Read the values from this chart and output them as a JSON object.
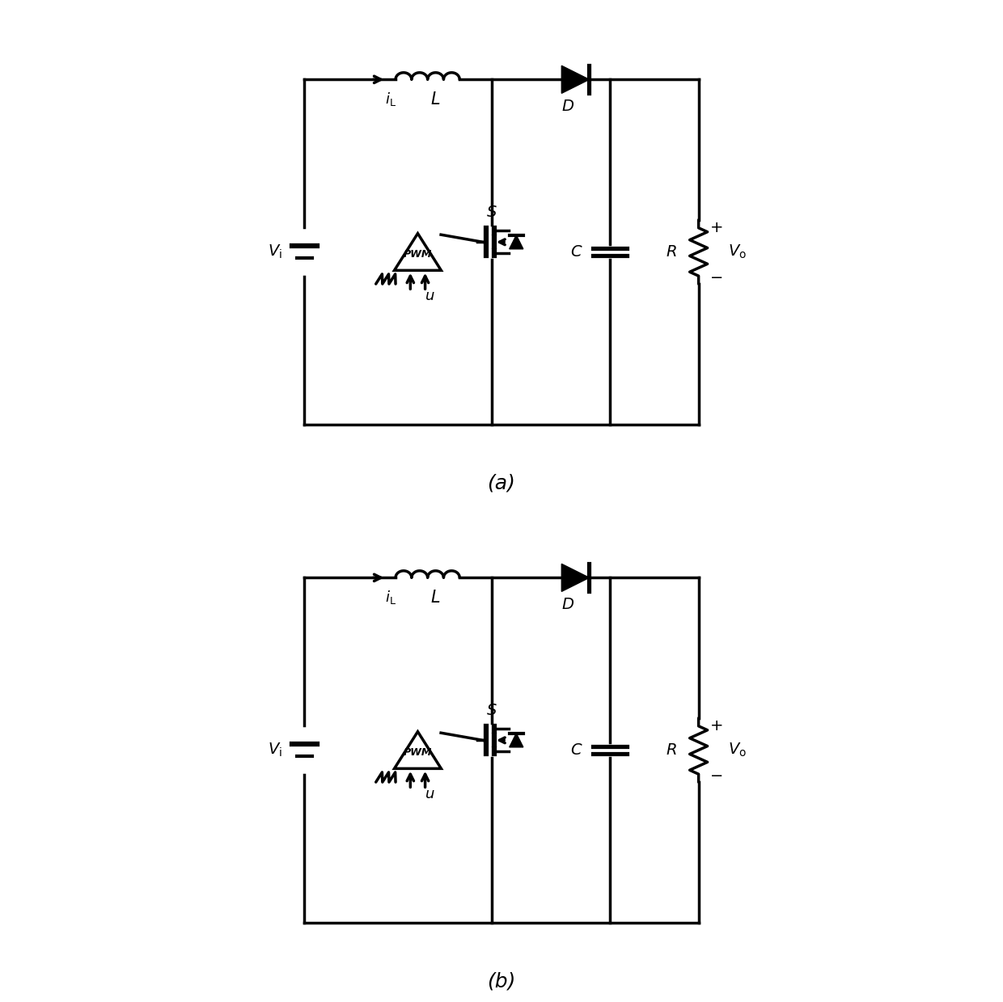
{
  "figure_width": 12.4,
  "figure_height": 12.39,
  "dpi": 100,
  "background_color": "#ffffff",
  "line_color": "#000000",
  "line_width": 2.5,
  "label_a": "(a)",
  "label_b": "(b)"
}
